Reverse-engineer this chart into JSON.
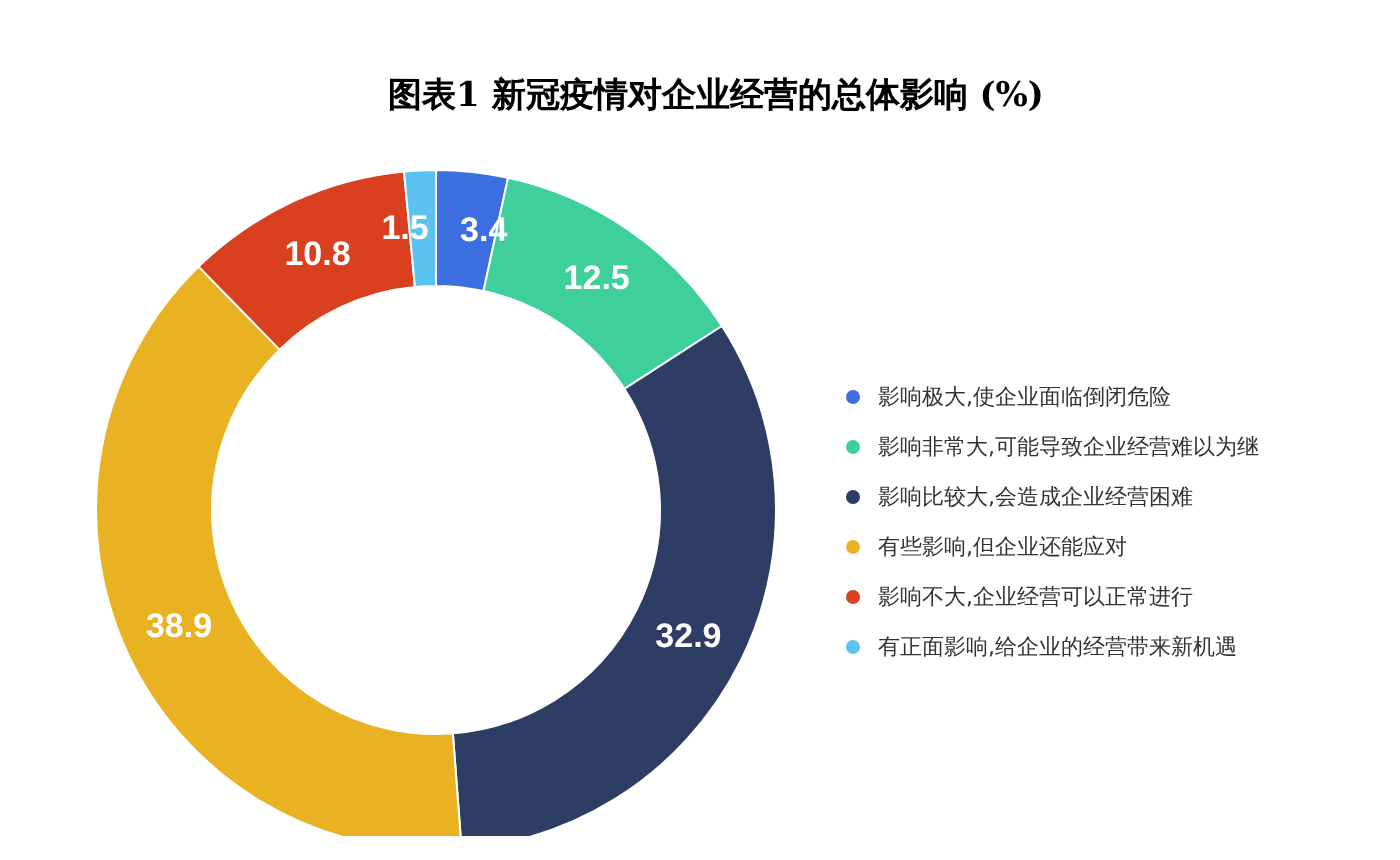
{
  "chart_data": {
    "type": "donut",
    "title": "图表1  新冠疫情对企业经营的总体影响 (%)",
    "categories": [
      "影响极大,使企业面临倒闭危险",
      "影响非常大,可能导致企业经营难以为继",
      "影响比较大,会造成企业经营困难",
      "有些影响,但企业还能应对",
      "影响不大,企业经营可以正常进行",
      "有正面影响,给企业的经营带来新机遇"
    ],
    "values": [
      3.4,
      12.5,
      32.9,
      38.9,
      10.8,
      1.5
    ],
    "colors": [
      "#3d6fe0",
      "#3ecf9a",
      "#2e3d63",
      "#e9b223",
      "#d9401f",
      "#5bc3ef"
    ],
    "data_labels": true,
    "legend": "right"
  }
}
